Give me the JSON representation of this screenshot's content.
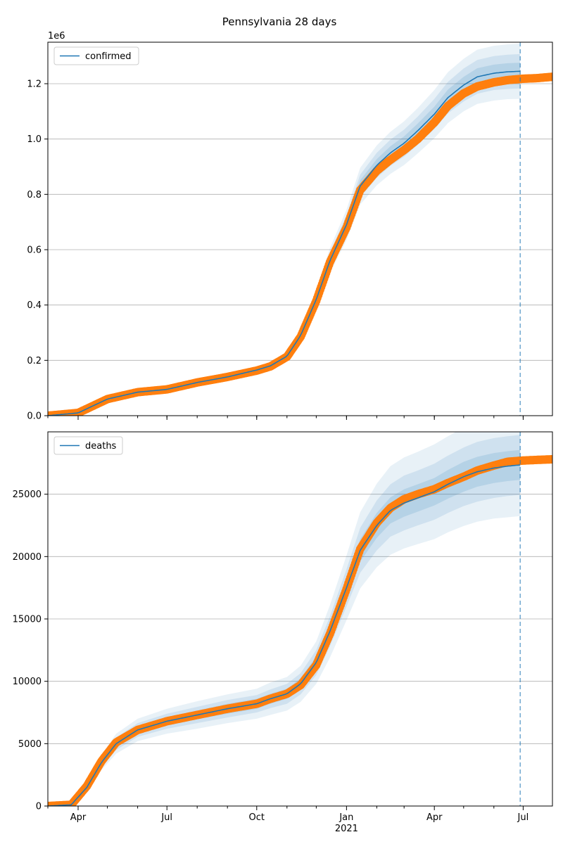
{
  "figure": {
    "title": "Pennsylvania 28 days"
  },
  "colors": {
    "model": "#1f77b4",
    "observed": "#ff7f0e",
    "band": "#1f77b4",
    "grid": "#b0b0b0"
  },
  "chart_data": [
    {
      "type": "line",
      "legend": "confirmed",
      "legend_position": "upper-left",
      "grid": "horizontal",
      "xlim": [
        "2020-03-01",
        "2021-07-31"
      ],
      "ylim": [
        0,
        1350000
      ],
      "y_ticks": [
        0,
        200000,
        400000,
        600000,
        800000,
        1000000,
        1200000
      ],
      "y_tick_labels": [
        "0.0",
        "0.2",
        "0.4",
        "0.6",
        "0.8",
        "1.0",
        "1.2"
      ],
      "y_offset_label": "1e6",
      "x_ticks": [],
      "forecast_date": "2021-06-28",
      "series": [
        {
          "name": "confirmed",
          "kind": "model",
          "x": [
            "2020-03-01",
            "2020-04-01",
            "2020-05-01",
            "2020-06-01",
            "2020-07-01",
            "2020-08-01",
            "2020-09-01",
            "2020-10-01",
            "2020-10-15",
            "2020-11-01",
            "2020-11-15",
            "2020-12-01",
            "2020-12-15",
            "2021-01-01",
            "2021-01-15",
            "2021-02-01",
            "2021-02-15",
            "2021-03-01",
            "2021-03-15",
            "2021-04-01",
            "2021-04-15",
            "2021-05-01",
            "2021-05-15",
            "2021-06-01",
            "2021-06-15",
            "2021-06-28"
          ],
          "y": [
            0,
            10000,
            60000,
            85000,
            95000,
            120000,
            140000,
            165000,
            180000,
            215000,
            290000,
            420000,
            560000,
            690000,
            830000,
            905000,
            950000,
            985000,
            1030000,
            1090000,
            1150000,
            1195000,
            1225000,
            1238000,
            1243000,
            1245000
          ]
        },
        {
          "name": "",
          "kind": "observed",
          "x": [
            "2020-03-01",
            "2020-04-01",
            "2020-05-01",
            "2020-06-01",
            "2020-07-01",
            "2020-08-01",
            "2020-09-01",
            "2020-10-01",
            "2020-10-15",
            "2020-11-01",
            "2020-11-15",
            "2020-12-01",
            "2020-12-15",
            "2021-01-01",
            "2021-01-15",
            "2021-02-01",
            "2021-02-15",
            "2021-03-01",
            "2021-03-15",
            "2021-04-01",
            "2021-04-15",
            "2021-05-01",
            "2021-05-15",
            "2021-06-01",
            "2021-06-15",
            "2021-07-01",
            "2021-07-15",
            "2021-07-31"
          ],
          "y": [
            0,
            10000,
            60000,
            85000,
            95000,
            120000,
            140000,
            163000,
            178000,
            213000,
            285000,
            415000,
            555000,
            680000,
            815000,
            885000,
            925000,
            960000,
            1000000,
            1060000,
            1120000,
            1165000,
            1190000,
            1205000,
            1213000,
            1218000,
            1220000,
            1225000
          ]
        }
      ],
      "uncertainty_bands": [
        {
          "lower": [
            0,
            9000,
            55000,
            78000,
            87000,
            110000,
            129000,
            152000,
            166000,
            198000,
            267000,
            386000,
            515000,
            635000,
            763000,
            833000,
            874000,
            906000,
            948000,
            1003000,
            1058000,
            1100000,
            1127000,
            1139000,
            1144000,
            1145000
          ],
          "upper": [
            0,
            11000,
            65000,
            92000,
            103000,
            130000,
            151000,
            178000,
            194000,
            232000,
            313000,
            454000,
            605000,
            745000,
            896000,
            977000,
            1026000,
            1064000,
            1112000,
            1177000,
            1242000,
            1290000,
            1323000,
            1337000,
            1342000,
            1345000
          ]
        },
        {
          "lower": [
            0,
            9400,
            57000,
            81000,
            90000,
            114000,
            133000,
            157000,
            171000,
            204000,
            276000,
            399000,
            532000,
            656000,
            789000,
            860000,
            903000,
            936000,
            979000,
            1036000,
            1093000,
            1136000,
            1164000,
            1177000,
            1181000,
            1183000
          ],
          "upper": [
            0,
            10600,
            63000,
            89000,
            100000,
            126000,
            147000,
            173000,
            189000,
            226000,
            304000,
            441000,
            588000,
            725000,
            871000,
            950000,
            998000,
            1034000,
            1081000,
            1145000,
            1207000,
            1255000,
            1286000,
            1300000,
            1305000,
            1307000
          ]
        },
        {
          "lower": [
            0,
            9700,
            58500,
            83000,
            93000,
            117000,
            136500,
            161000,
            175500,
            209500,
            283000,
            409500,
            546000,
            672500,
            809000,
            882500,
            926000,
            960500,
            1004000,
            1063000,
            1121000,
            1165000,
            1194000,
            1207000,
            1212000,
            1214000
          ],
          "upper": [
            0,
            10300,
            61500,
            87000,
            97000,
            123000,
            143500,
            169000,
            184500,
            220500,
            297000,
            430500,
            574000,
            707500,
            851000,
            927500,
            974000,
            1009500,
            1056000,
            1117000,
            1179000,
            1225000,
            1256000,
            1269000,
            1274000,
            1276000
          ]
        }
      ]
    },
    {
      "type": "line",
      "legend": "deaths",
      "legend_position": "upper-left",
      "grid": "horizontal",
      "xlim": [
        "2020-03-01",
        "2021-07-31"
      ],
      "ylim": [
        0,
        30000
      ],
      "y_ticks": [
        0,
        5000,
        10000,
        15000,
        20000,
        25000
      ],
      "y_tick_labels": [
        "0",
        "5000",
        "10000",
        "15000",
        "20000",
        "25000"
      ],
      "x_ticks": [
        "2020-04-01",
        "2020-07-01",
        "2020-10-01",
        "2021-01-01",
        "2021-04-01",
        "2021-07-01"
      ],
      "x_tick_labels": [
        "Apr",
        "Jul",
        "Oct",
        "Jan",
        "Apr",
        "Jul"
      ],
      "x_year_label": "2021",
      "forecast_date": "2021-06-28",
      "series": [
        {
          "name": "deaths",
          "kind": "model",
          "x": [
            "2020-03-01",
            "2020-03-25",
            "2020-04-10",
            "2020-04-25",
            "2020-05-10",
            "2020-06-01",
            "2020-07-01",
            "2020-08-01",
            "2020-09-01",
            "2020-10-01",
            "2020-10-15",
            "2020-11-01",
            "2020-11-15",
            "2020-12-01",
            "2020-12-15",
            "2021-01-01",
            "2021-01-15",
            "2021-02-01",
            "2021-02-15",
            "2021-03-01",
            "2021-03-15",
            "2021-04-01",
            "2021-04-15",
            "2021-05-01",
            "2021-05-15",
            "2021-06-01",
            "2021-06-15",
            "2021-06-28"
          ],
          "y": [
            0,
            100,
            1500,
            3500,
            5000,
            6100,
            6800,
            7300,
            7800,
            8200,
            8600,
            9000,
            9800,
            11500,
            14000,
            17500,
            20500,
            22500,
            23700,
            24300,
            24700,
            25200,
            25800,
            26400,
            26800,
            27100,
            27250,
            27350
          ]
        },
        {
          "name": "",
          "kind": "observed",
          "x": [
            "2020-03-01",
            "2020-03-25",
            "2020-04-10",
            "2020-04-25",
            "2020-05-10",
            "2020-06-01",
            "2020-07-01",
            "2020-08-01",
            "2020-09-01",
            "2020-10-01",
            "2020-10-15",
            "2020-11-01",
            "2020-11-15",
            "2020-12-01",
            "2020-12-15",
            "2021-01-01",
            "2021-01-15",
            "2021-02-01",
            "2021-02-15",
            "2021-03-01",
            "2021-03-15",
            "2021-04-01",
            "2021-04-15",
            "2021-05-01",
            "2021-05-15",
            "2021-06-01",
            "2021-06-15",
            "2021-07-01",
            "2021-07-15",
            "2021-07-31"
          ],
          "y": [
            0,
            100,
            1600,
            3600,
            5100,
            6100,
            6800,
            7300,
            7800,
            8200,
            8600,
            9000,
            9700,
            11300,
            13800,
            17400,
            20600,
            22700,
            23900,
            24600,
            25000,
            25400,
            25900,
            26400,
            26900,
            27300,
            27600,
            27700,
            27750,
            27800
          ]
        }
      ],
      "uncertainty_bands": [
        {
          "lower": [
            0,
            80,
            1200,
            2900,
            4200,
            5200,
            5800,
            6200,
            6650,
            7000,
            7300,
            7650,
            8350,
            9800,
            11900,
            14900,
            17450,
            19150,
            20150,
            20650,
            21000,
            21400,
            21950,
            22450,
            22800,
            23050,
            23150,
            23250
          ],
          "upper": [
            0,
            120,
            1800,
            4100,
            5800,
            7000,
            7800,
            8400,
            8950,
            9400,
            9900,
            10350,
            11250,
            13200,
            16100,
            20100,
            23550,
            25850,
            27250,
            27950,
            28400,
            29000,
            29650,
            30350,
            30800,
            31150,
            31350,
            31450
          ]
        },
        {
          "lower": [
            0,
            88,
            1320,
            3150,
            4500,
            5550,
            6200,
            6650,
            7100,
            7500,
            7850,
            8200,
            8950,
            10500,
            12800,
            16000,
            18700,
            20500,
            21600,
            22100,
            22500,
            22950,
            23500,
            24050,
            24400,
            24700,
            24850,
            24950
          ],
          "upper": [
            0,
            112,
            1680,
            3850,
            5500,
            6650,
            7400,
            7950,
            8500,
            8900,
            9350,
            9800,
            10650,
            12500,
            15200,
            19000,
            22300,
            24500,
            25800,
            26500,
            26900,
            27450,
            28100,
            28750,
            29200,
            29500,
            29650,
            29750
          ]
        },
        {
          "lower": [
            0,
            94,
            1410,
            3300,
            4700,
            5800,
            6450,
            6950,
            7400,
            7800,
            8200,
            8600,
            9350,
            11000,
            13400,
            16750,
            19600,
            21500,
            22650,
            23200,
            23600,
            24100,
            24650,
            25200,
            25600,
            25900,
            26050,
            26150
          ],
          "upper": [
            0,
            106,
            1590,
            3700,
            5300,
            6400,
            7150,
            7650,
            8200,
            8600,
            9000,
            9400,
            10250,
            12000,
            14600,
            18250,
            21400,
            23500,
            24750,
            25400,
            25800,
            26300,
            26950,
            27600,
            28000,
            28300,
            28450,
            28550
          ]
        }
      ]
    }
  ]
}
